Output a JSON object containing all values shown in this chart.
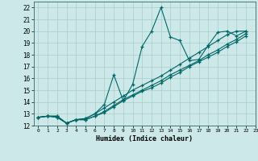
{
  "xlabel": "Humidex (Indice chaleur)",
  "xlim": [
    -0.5,
    23
  ],
  "ylim": [
    12,
    22.5
  ],
  "yticks": [
    12,
    13,
    14,
    15,
    16,
    17,
    18,
    19,
    20,
    21,
    22
  ],
  "xticks": [
    0,
    1,
    2,
    3,
    4,
    5,
    6,
    7,
    8,
    9,
    10,
    11,
    12,
    13,
    14,
    15,
    16,
    17,
    18,
    19,
    20,
    21,
    22,
    23
  ],
  "bg_color": "#cce8e8",
  "grid_color": "#aacccc",
  "line_color": "#006666",
  "lines": [
    {
      "x": [
        0,
        1,
        2,
        3,
        4,
        5,
        6,
        7,
        8,
        9,
        10,
        11,
        12,
        13,
        14,
        15,
        16,
        17,
        18,
        19,
        20,
        21,
        22
      ],
      "y": [
        12.7,
        12.8,
        12.8,
        12.2,
        12.5,
        12.6,
        13.0,
        13.8,
        16.3,
        14.1,
        15.5,
        18.7,
        20.0,
        22.0,
        19.5,
        19.2,
        17.5,
        17.6,
        18.8,
        19.9,
        20.0,
        19.6,
        20.0
      ]
    },
    {
      "x": [
        0,
        1,
        2,
        3,
        4,
        5,
        6,
        7,
        8,
        9,
        10,
        11,
        12,
        13,
        14,
        15,
        16,
        17,
        18,
        19,
        20,
        21,
        22
      ],
      "y": [
        12.7,
        12.8,
        12.8,
        12.2,
        12.5,
        12.6,
        13.0,
        13.5,
        14.0,
        14.5,
        15.0,
        15.4,
        15.8,
        16.2,
        16.7,
        17.2,
        17.7,
        18.2,
        18.7,
        19.2,
        19.7,
        20.0,
        20.0
      ]
    },
    {
      "x": [
        0,
        1,
        2,
        3,
        4,
        5,
        6,
        7,
        8,
        9,
        10,
        11,
        12,
        13,
        14,
        15,
        16,
        17,
        18,
        19,
        20,
        21,
        22
      ],
      "y": [
        12.7,
        12.8,
        12.7,
        12.2,
        12.5,
        12.5,
        12.8,
        13.2,
        13.7,
        14.2,
        14.6,
        15.0,
        15.4,
        15.8,
        16.3,
        16.7,
        17.1,
        17.5,
        18.0,
        18.4,
        18.9,
        19.3,
        19.8
      ]
    },
    {
      "x": [
        0,
        1,
        2,
        3,
        4,
        5,
        6,
        7,
        8,
        9,
        10,
        11,
        12,
        13,
        14,
        15,
        16,
        17,
        18,
        19,
        20,
        21,
        22
      ],
      "y": [
        12.7,
        12.8,
        12.7,
        12.2,
        12.5,
        12.5,
        12.8,
        13.1,
        13.6,
        14.1,
        14.5,
        14.9,
        15.2,
        15.6,
        16.1,
        16.5,
        17.0,
        17.4,
        17.8,
        18.2,
        18.7,
        19.1,
        19.6
      ]
    }
  ]
}
